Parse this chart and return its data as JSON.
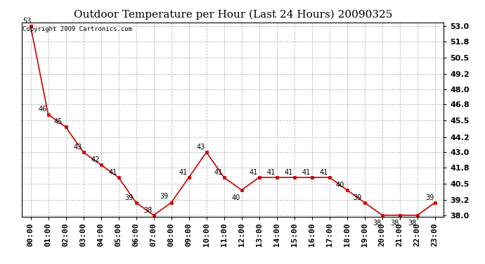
{
  "title": "Outdoor Temperature per Hour (Last 24 Hours) 20090325",
  "copyright_text": "Copyright 2009 Cartronics.com",
  "hours": [
    "00:00",
    "01:00",
    "02:00",
    "03:00",
    "04:00",
    "05:00",
    "06:00",
    "07:00",
    "08:00",
    "09:00",
    "10:00",
    "11:00",
    "12:00",
    "13:00",
    "14:00",
    "15:00",
    "16:00",
    "17:00",
    "18:00",
    "19:00",
    "20:00",
    "21:00",
    "22:00",
    "23:00"
  ],
  "temps": [
    53,
    46,
    45,
    43,
    42,
    41,
    39,
    38,
    39,
    41,
    43,
    41,
    40,
    41,
    41,
    41,
    41,
    41,
    40,
    39,
    38,
    38,
    38,
    39
  ],
  "line_color": "#cc0000",
  "marker_color": "#cc0000",
  "bg_color": "#ffffff",
  "grid_color": "#bbbbbb",
  "ylim_min": 37.9,
  "ylim_max": 53.3,
  "yticks": [
    38.0,
    39.2,
    40.5,
    41.8,
    43.0,
    44.2,
    45.5,
    46.8,
    48.0,
    49.2,
    50.5,
    51.8,
    53.0
  ],
  "title_fontsize": 11,
  "label_fontsize": 7,
  "tick_fontsize": 8,
  "copyright_fontsize": 6.5
}
